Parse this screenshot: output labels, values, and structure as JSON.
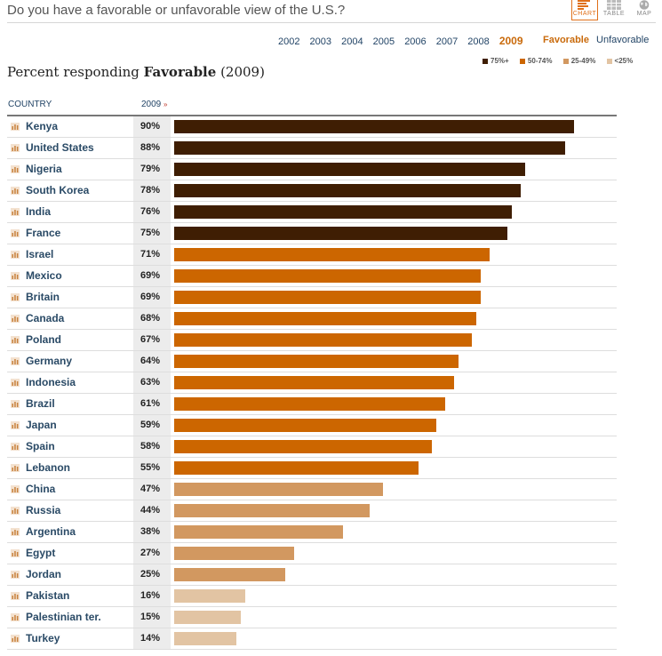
{
  "question": "Do you have a favorable or unfavorable view of the U.S.?",
  "views": [
    {
      "label": "CHART",
      "active": true
    },
    {
      "label": "TABLE",
      "active": false
    },
    {
      "label": "MAP",
      "active": false
    }
  ],
  "years": [
    "2002",
    "2003",
    "2004",
    "2005",
    "2006",
    "2007",
    "2008",
    "2009"
  ],
  "selected_year": "2009",
  "mode": {
    "favorable": "Favorable",
    "unfavorable": "Unfavorable"
  },
  "legend": [
    {
      "label": "75%+",
      "color": "#3f1e03"
    },
    {
      "label": "50-74%",
      "color": "#cc6600"
    },
    {
      "label": "25-49%",
      "color": "#d29860"
    },
    {
      "label": "<25%",
      "color": "#e2c4a3"
    }
  ],
  "subtitle": {
    "prefix": "Percent responding ",
    "emphasis": "Favorable",
    "suffix": " (2009)"
  },
  "columns": {
    "country": "COUNTRY",
    "year": "2009",
    "sort_icon": "»"
  },
  "chart_data": {
    "type": "bar",
    "orientation": "horizontal",
    "title": "Percent responding Favorable (2009)",
    "xlim": [
      0,
      100
    ],
    "categories": [
      "Kenya",
      "United States",
      "Nigeria",
      "South Korea",
      "India",
      "France",
      "Israel",
      "Mexico",
      "Britain",
      "Canada",
      "Poland",
      "Germany",
      "Indonesia",
      "Brazil",
      "Japan",
      "Spain",
      "Lebanon",
      "China",
      "Russia",
      "Argentina",
      "Egypt",
      "Jordan",
      "Pakistan",
      "Palestinian ter.",
      "Turkey"
    ],
    "values": [
      90,
      88,
      79,
      78,
      76,
      75,
      71,
      69,
      69,
      68,
      67,
      64,
      63,
      61,
      59,
      58,
      55,
      47,
      44,
      38,
      27,
      25,
      16,
      15,
      14
    ],
    "labels": [
      "90%",
      "88%",
      "79%",
      "78%",
      "76%",
      "75%",
      "71%",
      "69%",
      "69%",
      "68%",
      "67%",
      "64%",
      "63%",
      "61%",
      "59%",
      "58%",
      "55%",
      "47%",
      "44%",
      "38%",
      "27%",
      "25%",
      "16%",
      "15%",
      "14%"
    ]
  }
}
